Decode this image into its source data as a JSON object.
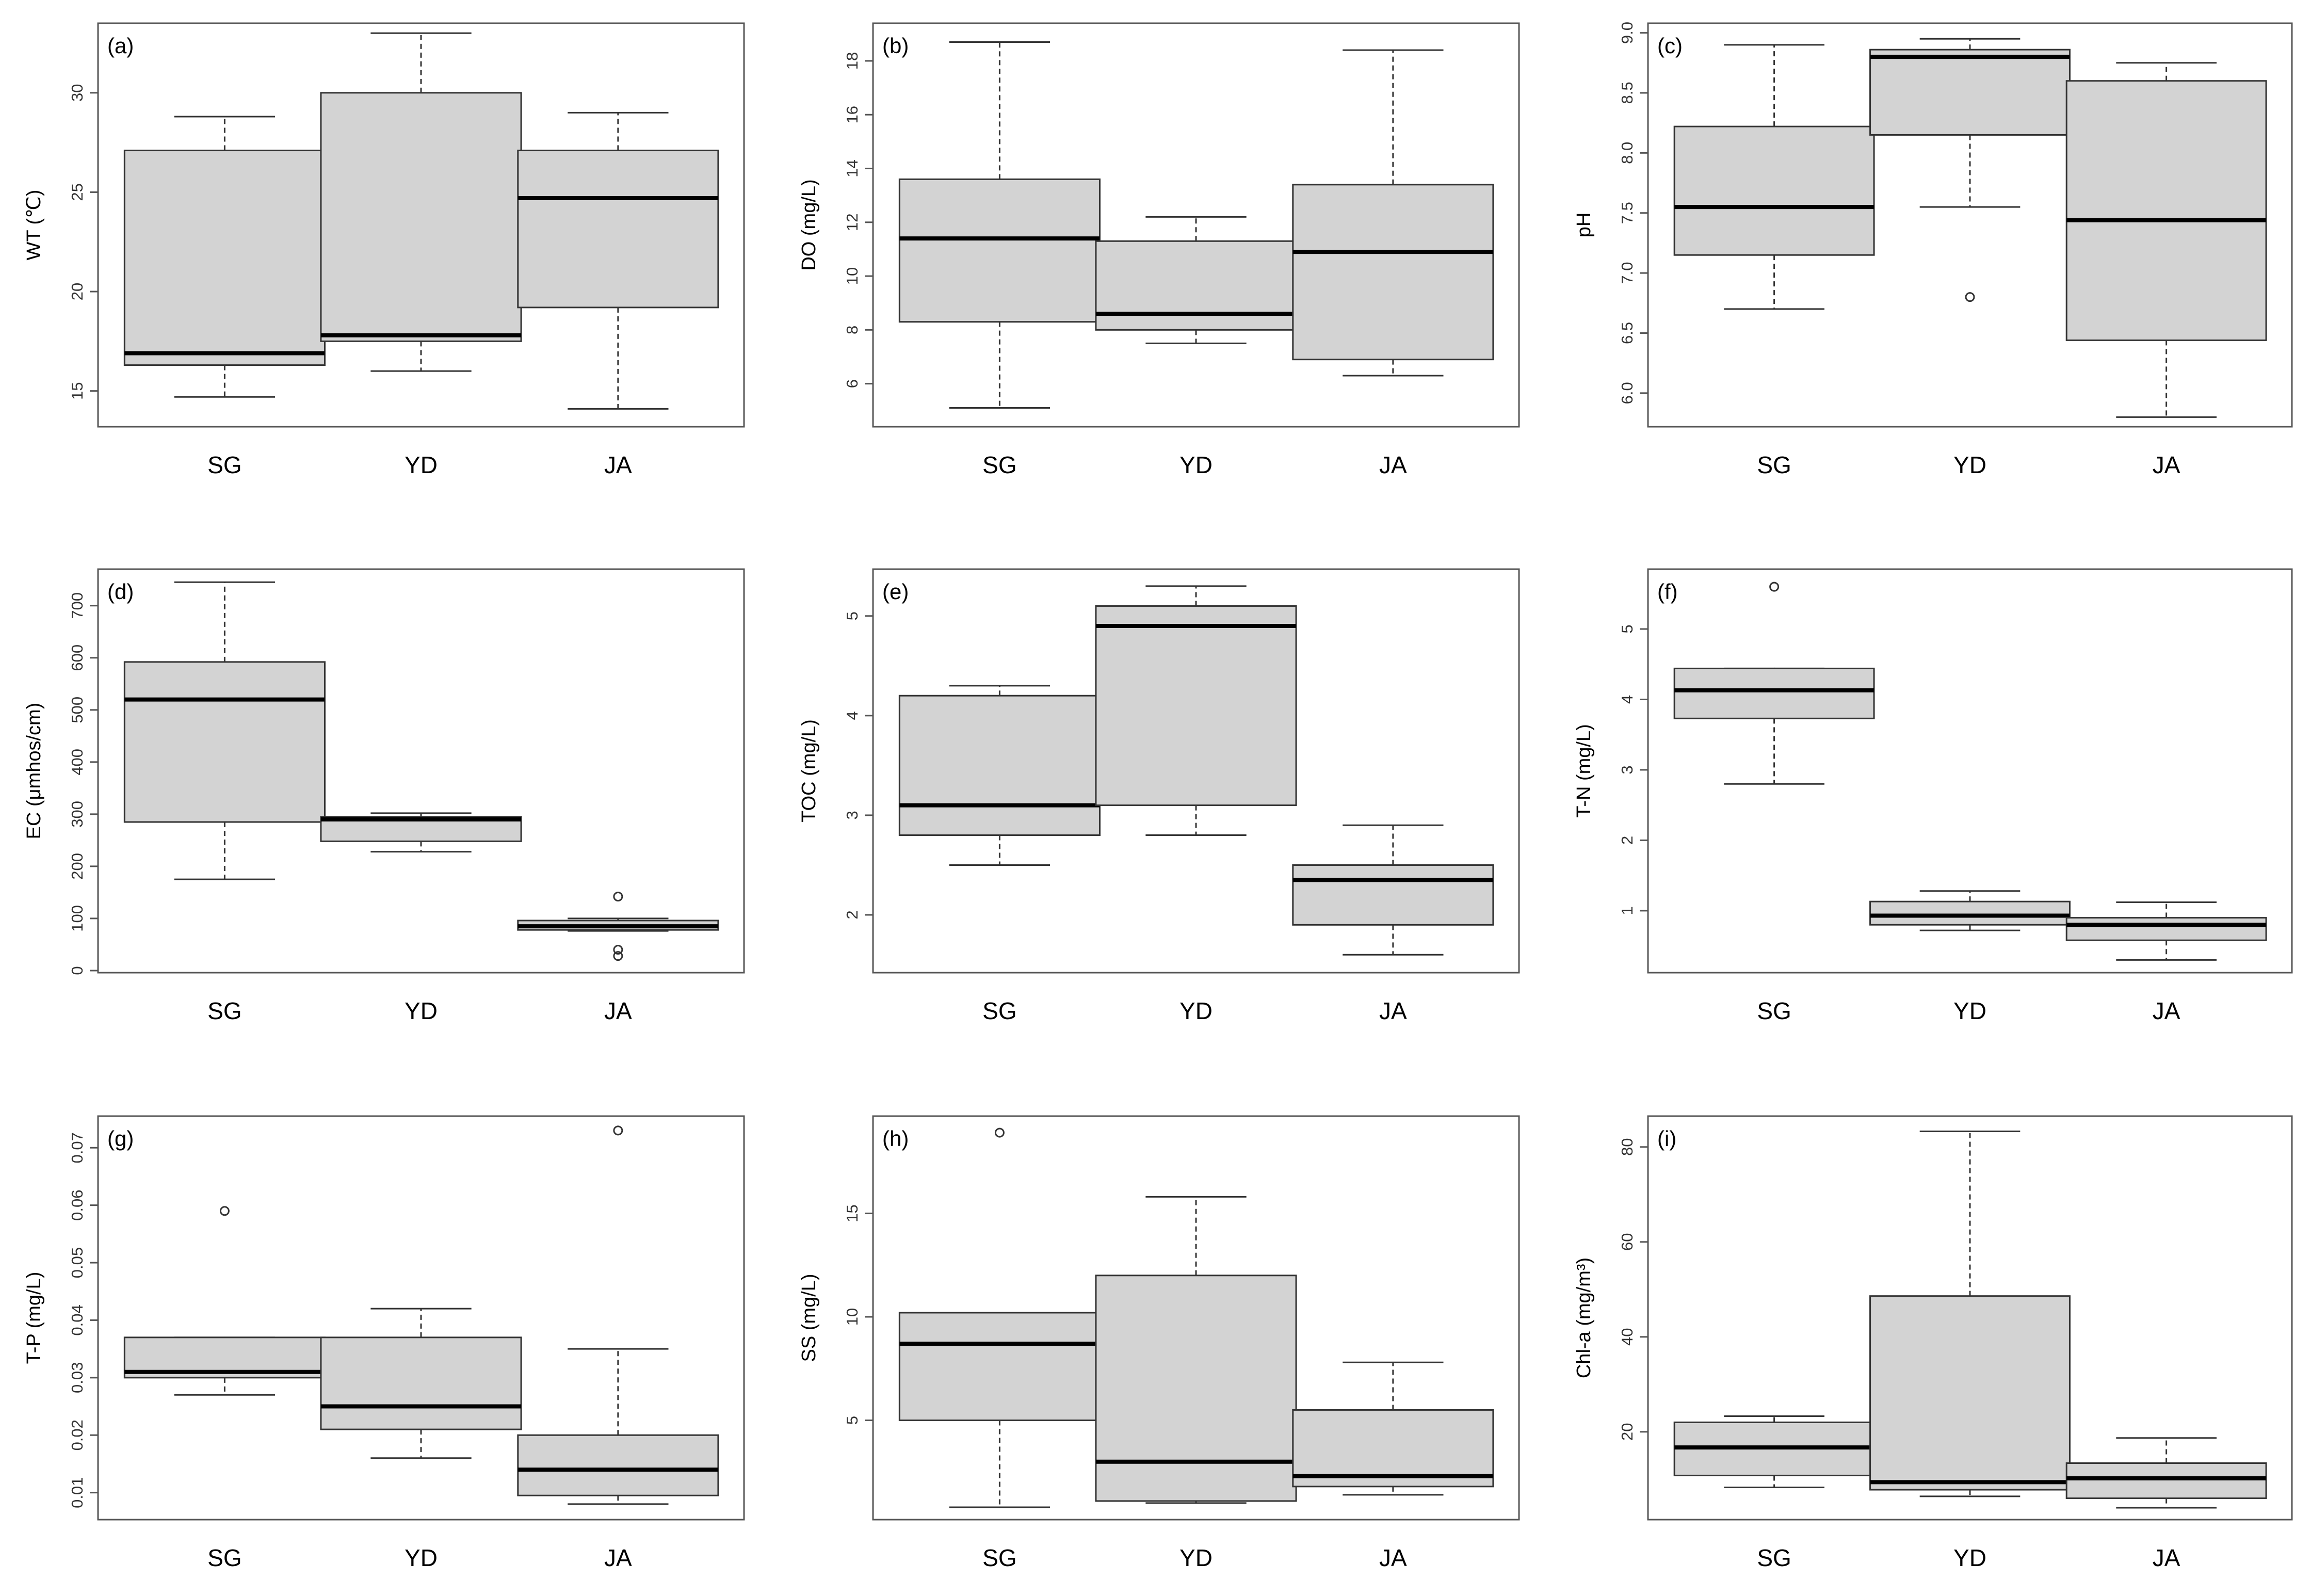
{
  "chart_data": [
    {
      "type": "box",
      "panel": "(a)",
      "ylabel": "WT (℃)",
      "categories": [
        "SG",
        "YD",
        "JA"
      ],
      "ylim": [
        13.2,
        33.5
      ],
      "yticks": [
        15,
        20,
        25,
        30
      ],
      "boxes": [
        {
          "min": 14.7,
          "q1": 16.3,
          "median": 16.9,
          "q3": 27.1,
          "max": 28.8,
          "outliers": []
        },
        {
          "min": 16.0,
          "q1": 17.5,
          "median": 17.8,
          "q3": 30.0,
          "max": 33.0,
          "outliers": []
        },
        {
          "min": 14.1,
          "q1": 19.2,
          "median": 24.7,
          "q3": 27.1,
          "max": 29.0,
          "outliers": []
        }
      ]
    },
    {
      "type": "box",
      "panel": "(b)",
      "ylabel": "DO (mg/L)",
      "categories": [
        "SG",
        "YD",
        "JA"
      ],
      "ylim": [
        4.4,
        19.4
      ],
      "yticks": [
        6,
        8,
        10,
        12,
        14,
        16,
        18
      ],
      "boxes": [
        {
          "min": 5.1,
          "q1": 8.3,
          "median": 11.4,
          "q3": 13.6,
          "max": 18.7,
          "outliers": []
        },
        {
          "min": 7.5,
          "q1": 8.0,
          "median": 8.6,
          "q3": 11.3,
          "max": 12.2,
          "outliers": []
        },
        {
          "min": 6.3,
          "q1": 6.9,
          "median": 10.9,
          "q3": 13.4,
          "max": 18.4,
          "outliers": []
        }
      ]
    },
    {
      "type": "box",
      "panel": "(c)",
      "ylabel": "pH",
      "categories": [
        "SG",
        "YD",
        "JA"
      ],
      "ylim": [
        5.72,
        9.08
      ],
      "yticks": [
        6.0,
        6.5,
        7.0,
        7.5,
        8.0,
        8.5,
        9.0
      ],
      "tick_decimals": 1,
      "boxes": [
        {
          "min": 6.7,
          "q1": 7.15,
          "median": 7.55,
          "q3": 8.22,
          "max": 8.9,
          "outliers": []
        },
        {
          "min": 7.55,
          "q1": 8.15,
          "median": 8.8,
          "q3": 8.86,
          "max": 8.95,
          "outliers": [
            6.8
          ]
        },
        {
          "min": 5.8,
          "q1": 6.44,
          "median": 7.44,
          "q3": 8.6,
          "max": 8.75,
          "outliers": []
        }
      ]
    },
    {
      "type": "box",
      "panel": "(d)",
      "ylabel": "EC (μmhos/cm)",
      "categories": [
        "SG",
        "YD",
        "JA"
      ],
      "ylim": [
        -4,
        770
      ],
      "yticks": [
        0,
        100,
        200,
        300,
        400,
        500,
        600,
        700
      ],
      "boxes": [
        {
          "min": 175,
          "q1": 285,
          "median": 520,
          "q3": 592,
          "max": 745,
          "outliers": []
        },
        {
          "min": 228,
          "q1": 248,
          "median": 290,
          "q3": 295,
          "max": 302,
          "outliers": []
        },
        {
          "min": 76,
          "q1": 78,
          "median": 85,
          "q3": 96,
          "max": 100,
          "outliers": [
            142,
            40,
            28
          ]
        }
      ]
    },
    {
      "type": "box",
      "panel": "(e)",
      "ylabel": "TOC (mg/L)",
      "categories": [
        "SG",
        "YD",
        "JA"
      ],
      "ylim": [
        1.42,
        5.47
      ],
      "yticks": [
        2,
        3,
        4,
        5
      ],
      "boxes": [
        {
          "min": 2.5,
          "q1": 2.8,
          "median": 3.1,
          "q3": 4.2,
          "max": 4.3,
          "outliers": []
        },
        {
          "min": 2.8,
          "q1": 3.1,
          "median": 4.9,
          "q3": 5.1,
          "max": 5.3,
          "outliers": []
        },
        {
          "min": 1.6,
          "q1": 1.9,
          "median": 2.35,
          "q3": 2.5,
          "max": 2.9,
          "outliers": []
        }
      ]
    },
    {
      "type": "box",
      "panel": "(f)",
      "ylabel": "T-N (mg/L)",
      "categories": [
        "SG",
        "YD",
        "JA"
      ],
      "ylim": [
        0.12,
        5.85
      ],
      "yticks": [
        1,
        2,
        3,
        4,
        5
      ],
      "boxes": [
        {
          "min": 2.8,
          "q1": 3.73,
          "median": 4.13,
          "q3": 4.44,
          "max": 4.44,
          "outliers": [
            5.6
          ]
        },
        {
          "min": 0.72,
          "q1": 0.8,
          "median": 0.93,
          "q3": 1.13,
          "max": 1.28,
          "outliers": []
        },
        {
          "min": 0.3,
          "q1": 0.58,
          "median": 0.8,
          "q3": 0.9,
          "max": 1.12,
          "outliers": []
        }
      ]
    },
    {
      "type": "box",
      "panel": "(g)",
      "ylabel": "T-P (mg/L)",
      "categories": [
        "SG",
        "YD",
        "JA"
      ],
      "ylim": [
        0.0053,
        0.0755
      ],
      "yticks": [
        0.01,
        0.02,
        0.03,
        0.04,
        0.05,
        0.06,
        0.07
      ],
      "tick_decimals": 2,
      "boxes": [
        {
          "min": 0.027,
          "q1": 0.03,
          "median": 0.031,
          "q3": 0.037,
          "max": 0.037,
          "outliers": [
            0.059
          ]
        },
        {
          "min": 0.016,
          "q1": 0.021,
          "median": 0.025,
          "q3": 0.037,
          "max": 0.042,
          "outliers": []
        },
        {
          "min": 0.008,
          "q1": 0.0095,
          "median": 0.014,
          "q3": 0.02,
          "max": 0.035,
          "outliers": [
            0.073
          ]
        }
      ]
    },
    {
      "type": "box",
      "panel": "(h)",
      "ylabel": "SS (mg/L)",
      "categories": [
        "SG",
        "YD",
        "JA"
      ],
      "ylim": [
        0.2,
        19.7
      ],
      "yticks": [
        5,
        10,
        15
      ],
      "boxes": [
        {
          "min": 0.8,
          "q1": 5.0,
          "median": 8.7,
          "q3": 10.2,
          "max": 10.2,
          "outliers": [
            18.9
          ]
        },
        {
          "min": 1.0,
          "q1": 1.1,
          "median": 3.0,
          "q3": 12.0,
          "max": 15.8,
          "outliers": []
        },
        {
          "min": 1.4,
          "q1": 1.8,
          "median": 2.3,
          "q3": 5.5,
          "max": 7.8,
          "outliers": []
        }
      ]
    },
    {
      "type": "box",
      "panel": "(i)",
      "ylabel": "Chl-a (mg/m³)",
      "categories": [
        "SG",
        "YD",
        "JA"
      ],
      "ylim": [
        1.5,
        86.5
      ],
      "yticks": [
        20,
        40,
        60,
        80
      ],
      "boxes": [
        {
          "min": 8.3,
          "q1": 10.8,
          "median": 16.7,
          "q3": 22.0,
          "max": 23.3,
          "outliers": []
        },
        {
          "min": 6.4,
          "q1": 7.8,
          "median": 9.4,
          "q3": 48.6,
          "max": 83.3,
          "outliers": []
        },
        {
          "min": 4.0,
          "q1": 6.0,
          "median": 10.2,
          "q3": 13.4,
          "max": 18.7,
          "outliers": []
        }
      ]
    }
  ],
  "colors": {
    "box_fill": "#d3d3d3",
    "box_stroke": "#333333",
    "median": "#000000",
    "frame": "#555555"
  }
}
